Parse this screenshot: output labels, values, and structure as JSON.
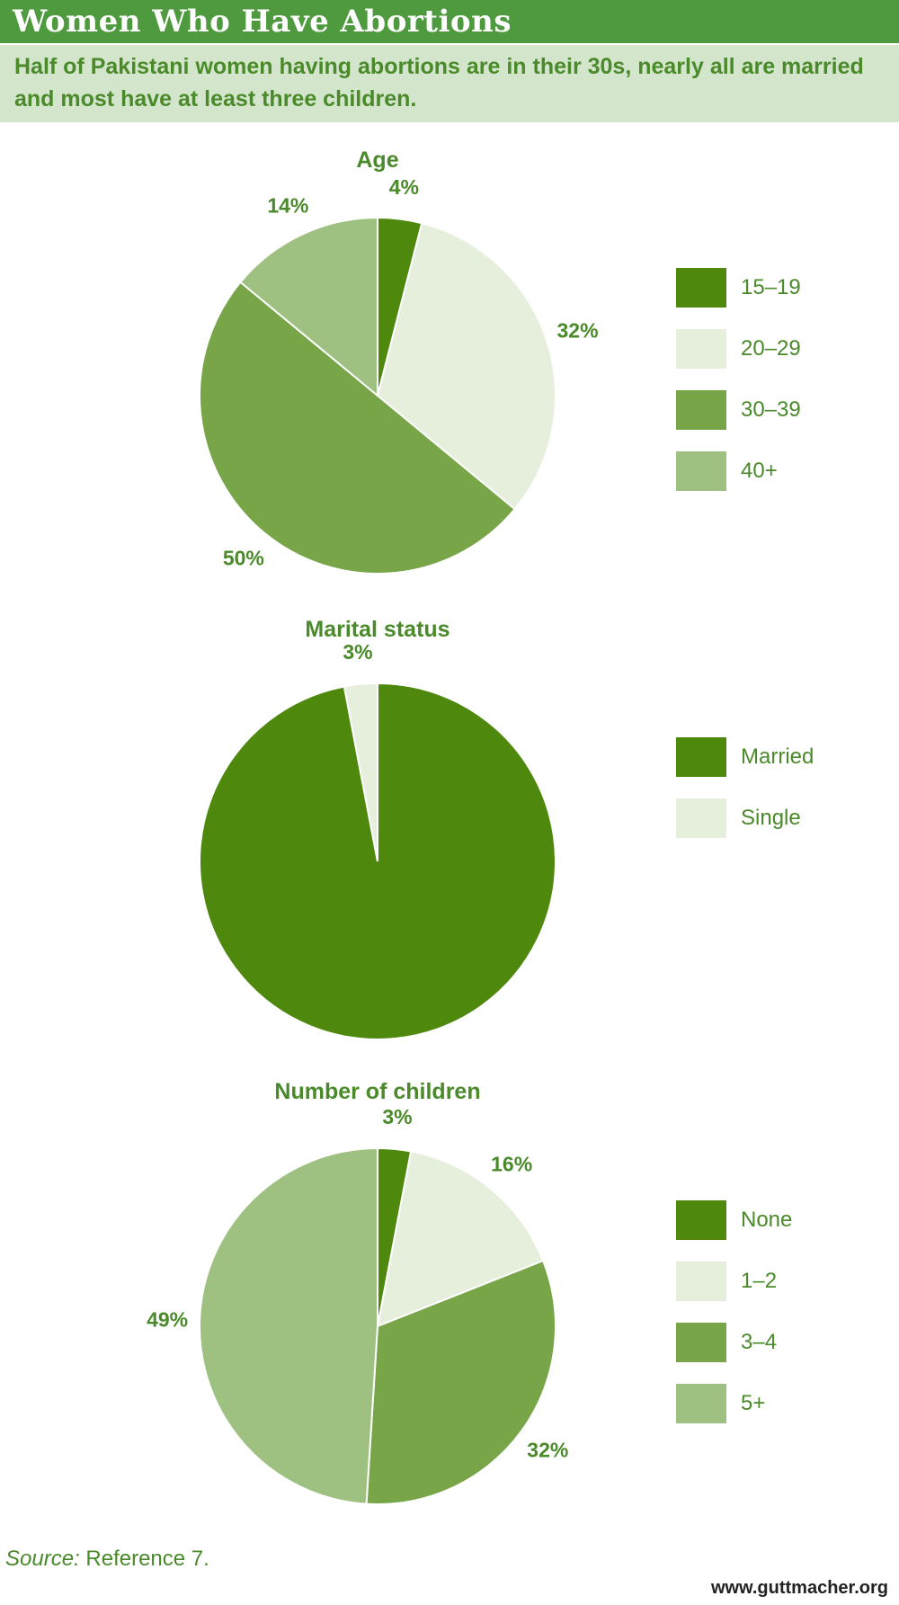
{
  "header": {
    "title": "Women Who Have Abortions",
    "subtitle": "Half of Pakistani women having abortions are in their 30s, nearly all are married and most have at least three children."
  },
  "colors": {
    "header_bg": "#4f9a3e",
    "subtitle_bg": "#d3e6cb",
    "text_green": "#4a8a2a",
    "slice_dark": "#4e880d",
    "slice_pale": "#e5efdc",
    "slice_mid": "#77a548",
    "slice_light": "#9ec182"
  },
  "chart_data": [
    {
      "type": "pie",
      "title": "Age",
      "categories": [
        "15–19",
        "20–29",
        "30–39",
        "40+"
      ],
      "values": [
        4,
        32,
        50,
        14
      ],
      "value_labels": [
        "4%",
        "32%",
        "50%",
        "14%"
      ],
      "colors": [
        "#4e880d",
        "#e5efdc",
        "#77a548",
        "#9ec182"
      ],
      "legend": "right",
      "start_angle": 0,
      "direction": "clockwise"
    },
    {
      "type": "pie",
      "title": "Marital status",
      "categories": [
        "Married",
        "Single"
      ],
      "values": [
        97,
        3
      ],
      "value_labels": [
        "97%",
        "3%"
      ],
      "colors": [
        "#4e880d",
        "#e5efdc"
      ],
      "legend": "right",
      "start_angle": 0,
      "direction": "clockwise"
    },
    {
      "type": "pie",
      "title": "Number of children",
      "categories": [
        "None",
        "1–2",
        "3–4",
        "5+"
      ],
      "values": [
        3,
        16,
        32,
        49
      ],
      "value_labels": [
        "3%",
        "16%",
        "32%",
        "49%"
      ],
      "colors": [
        "#4e880d",
        "#e5efdc",
        "#77a548",
        "#9ec182"
      ],
      "legend": "right",
      "start_angle": 0,
      "direction": "clockwise"
    }
  ],
  "footer": {
    "source_label": "Source:",
    "source_text": " Reference 7.",
    "website": "www.guttmacher.org"
  }
}
